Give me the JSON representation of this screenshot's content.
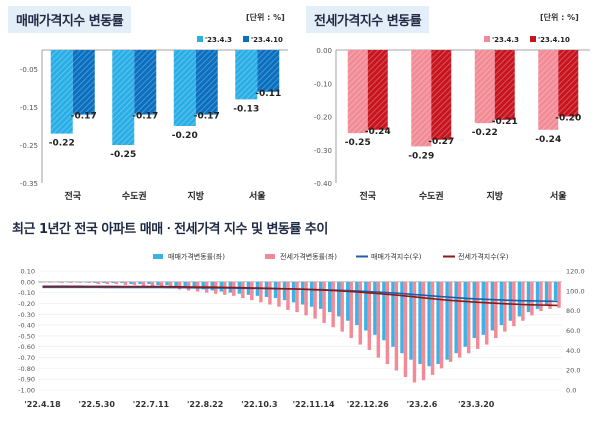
{
  "chart_data": [
    {
      "type": "bar",
      "title": "매매가격지수 변동률",
      "unit": "[단위 : %]",
      "categories": [
        "전국",
        "수도권",
        "지방",
        "서울"
      ],
      "series": [
        {
          "name": "'23.4.3",
          "values": [
            -0.22,
            -0.25,
            -0.2,
            -0.13
          ],
          "color": "#29aee6"
        },
        {
          "name": "'23.4.10",
          "values": [
            -0.17,
            -0.17,
            -0.17,
            -0.11
          ],
          "color": "#0a6fbf"
        }
      ],
      "labels": [
        [
          "-0.22",
          "-0.25",
          "-0.20",
          "-0.13"
        ],
        [
          "-0.17",
          "-0.17",
          "-0.17",
          "-0.11"
        ]
      ],
      "ylim": [
        -0.35,
        0.0
      ],
      "yticks": [
        "-0.05",
        "-0.15",
        "-0.25",
        "-0.35"
      ],
      "ytick_values": [
        -0.05,
        -0.15,
        -0.25,
        -0.35
      ],
      "legend": "top-right"
    },
    {
      "type": "bar",
      "title": "전세가격지수 변동률",
      "unit": "[단위 : %]",
      "categories": [
        "전국",
        "수도권",
        "지방",
        "서울"
      ],
      "series": [
        {
          "name": "'23.4.3",
          "values": [
            -0.25,
            -0.29,
            -0.22,
            -0.24
          ],
          "color": "#f28b95"
        },
        {
          "name": "'23.4.10",
          "values": [
            -0.24,
            -0.27,
            -0.21,
            -0.2
          ],
          "color": "#c8141e"
        }
      ],
      "labels": [
        [
          "-0.25",
          "-0.29",
          "-0.22",
          "-0.24"
        ],
        [
          "-0.24",
          "-0.27",
          "-0.21",
          "-0.20"
        ]
      ],
      "ylim": [
        -0.4,
        0.0
      ],
      "yticks": [
        "0.00",
        "-0.10",
        "-0.20",
        "-0.30",
        "-0.40"
      ],
      "ytick_values": [
        0.0,
        -0.1,
        -0.2,
        -0.3,
        -0.4
      ],
      "legend": "top-right"
    },
    {
      "type": "bar",
      "title": "최근 1년간 전국 아파트 매매ㆍ전세가격 지수 및 변동률 추이",
      "series": [
        {
          "name": "매매가격변동률(좌)",
          "color": "#3bb3e6",
          "values": [
            0.0,
            0.0,
            0.0,
            0.0,
            0.0,
            0.0,
            -0.01,
            -0.01,
            -0.01,
            -0.01,
            -0.02,
            -0.02,
            -0.02,
            -0.03,
            -0.03,
            -0.04,
            -0.05,
            -0.06,
            -0.07,
            -0.08,
            -0.09,
            -0.1,
            -0.11,
            -0.12,
            -0.13,
            -0.14,
            -0.15,
            -0.17,
            -0.19,
            -0.21,
            -0.23,
            -0.25,
            -0.28,
            -0.32,
            -0.36,
            -0.4,
            -0.45,
            -0.49,
            -0.54,
            -0.6,
            -0.66,
            -0.72,
            -0.76,
            -0.78,
            -0.76,
            -0.72,
            -0.66,
            -0.6,
            -0.52,
            -0.49,
            -0.45,
            -0.4,
            -0.36,
            -0.32,
            -0.28,
            -0.25,
            -0.22,
            -0.17
          ]
        },
        {
          "name": "전세가격변동률(좌)",
          "color": "#f48a95",
          "values": [
            0.0,
            0.0,
            -0.01,
            -0.01,
            -0.01,
            -0.01,
            -0.02,
            -0.02,
            -0.02,
            -0.03,
            -0.03,
            -0.04,
            -0.04,
            -0.05,
            -0.06,
            -0.07,
            -0.08,
            -0.09,
            -0.1,
            -0.11,
            -0.12,
            -0.13,
            -0.15,
            -0.17,
            -0.19,
            -0.21,
            -0.23,
            -0.26,
            -0.28,
            -0.31,
            -0.34,
            -0.38,
            -0.42,
            -0.46,
            -0.52,
            -0.58,
            -0.63,
            -0.7,
            -0.76,
            -0.82,
            -0.88,
            -0.93,
            -0.91,
            -0.86,
            -0.8,
            -0.74,
            -0.7,
            -0.66,
            -0.62,
            -0.58,
            -0.52,
            -0.46,
            -0.41,
            -0.36,
            -0.31,
            -0.27,
            -0.25,
            -0.24
          ]
        },
        {
          "name": "매매가격지수(우)",
          "color": "#1f5fa8",
          "axis": "right",
          "values": [
            103.6,
            103.6,
            103.6,
            103.6,
            103.6,
            103.6,
            103.6,
            103.5,
            103.5,
            103.5,
            103.5,
            103.4,
            103.4,
            103.4,
            103.3,
            103.3,
            103.2,
            103.1,
            103.1,
            103.0,
            102.9,
            102.8,
            102.7,
            102.6,
            102.4,
            102.3,
            102.1,
            102.0,
            101.8,
            101.6,
            101.3,
            101.1,
            100.8,
            100.5,
            100.1,
            99.7,
            99.3,
            98.8,
            98.3,
            97.8,
            97.1,
            96.4,
            95.7,
            95.0,
            94.3,
            93.6,
            93.0,
            92.4,
            91.9,
            91.5,
            91.1,
            90.7,
            90.4,
            90.1,
            89.9,
            89.7,
            89.5,
            89.3
          ]
        },
        {
          "name": "전세가격지수(우)",
          "color": "#8b1a1a",
          "axis": "right",
          "values": [
            104.6,
            104.6,
            104.6,
            104.6,
            104.6,
            104.5,
            104.5,
            104.5,
            104.5,
            104.4,
            104.4,
            104.4,
            104.3,
            104.3,
            104.2,
            104.1,
            104.0,
            103.9,
            103.8,
            103.7,
            103.5,
            103.4,
            103.2,
            103.0,
            102.8,
            102.6,
            102.4,
            102.1,
            101.8,
            101.5,
            101.1,
            100.7,
            100.3,
            99.8,
            99.3,
            98.7,
            98.0,
            97.4,
            96.6,
            95.9,
            95.0,
            94.1,
            93.1,
            92.2,
            91.3,
            90.5,
            89.8,
            89.1,
            88.5,
            88.0,
            87.5,
            87.0,
            86.6,
            86.2,
            85.9,
            85.7,
            85.5,
            85.3
          ]
        }
      ],
      "xticks": [
        "'22.4.18",
        "'22.5.30",
        "'22.7.11",
        "'22.8.22",
        "'22.10.3",
        "'22.11.14",
        "'22.12.26",
        "'23.2.6",
        "'23.3.20"
      ],
      "xtick_index": [
        0,
        6,
        12,
        18,
        24,
        30,
        36,
        42,
        48
      ],
      "yticks_left": [
        "0.10",
        "0.00",
        "-0.10",
        "-0.20",
        "-0.30",
        "-0.40",
        "-0.50",
        "-0.60",
        "-0.70",
        "-0.80",
        "-0.90",
        "-1.00"
      ],
      "yticks_left_values": [
        0.1,
        0.0,
        -0.1,
        -0.2,
        -0.3,
        -0.4,
        -0.5,
        -0.6,
        -0.7,
        -0.8,
        -0.9,
        -1.0
      ],
      "yticks_right": [
        "120.0",
        "100.0",
        "80.0",
        "60.0",
        "40.0",
        "20.0",
        "0.0"
      ],
      "yticks_right_values": [
        120,
        100,
        80,
        60,
        40,
        20,
        0
      ],
      "ylim_left": [
        -1.0,
        0.1
      ],
      "ylim_right": [
        0,
        120
      ],
      "legend": "top"
    }
  ]
}
